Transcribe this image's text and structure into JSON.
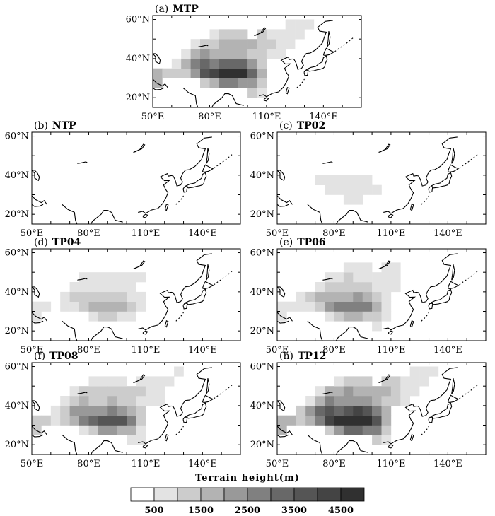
{
  "colorbar": {
    "title": "Terrain height(m)",
    "tick_labels": [
      "500",
      "1500",
      "2500",
      "3500",
      "4500"
    ],
    "levels": [
      0,
      500,
      1000,
      1500,
      2000,
      2500,
      3000,
      3500,
      4000,
      4500,
      5000
    ],
    "colors": [
      "#ffffff",
      "#e3e3e3",
      "#cccccc",
      "#b3b3b3",
      "#999999",
      "#808080",
      "#686868",
      "#555555",
      "#444444",
      "#303030"
    ]
  },
  "map_extent": {
    "lon": [
      50,
      160
    ],
    "lat": [
      15,
      62
    ]
  },
  "x_tick_labels": [
    "50°E",
    "80°E",
    "110°E",
    "140°E"
  ],
  "y_tick_labels": [
    "60°N",
    "40°N",
    "20°N"
  ],
  "panels": [
    {
      "label": "(a)",
      "name": "MTP",
      "scale": 1.0
    },
    {
      "label": "(b)",
      "name": "NTP",
      "scale": 0.0
    },
    {
      "label": "(c)",
      "name": "TP02",
      "scale": 0.2
    },
    {
      "label": "(d)",
      "name": "TP04",
      "scale": 0.4
    },
    {
      "label": "(e)",
      "name": "TP06",
      "scale": 0.6
    },
    {
      "label": "(f)",
      "name": "TP08",
      "scale": 0.8
    },
    {
      "label": "(h)",
      "name": "TP12",
      "scale": 1.2
    }
  ],
  "grid_resolution_deg": 5,
  "terrain_cells_m": [
    {
      "lon": 52.5,
      "lat": 27.5,
      "h": 1500
    },
    {
      "lon": 52.5,
      "lat": 32.5,
      "h": 1600
    },
    {
      "lon": 57.5,
      "lat": 32.5,
      "h": 1300
    },
    {
      "lon": 62.5,
      "lat": 32.5,
      "h": 1200
    },
    {
      "lon": 62.5,
      "lat": 37.5,
      "h": 900
    },
    {
      "lon": 67.5,
      "lat": 32.5,
      "h": 1400
    },
    {
      "lon": 67.5,
      "lat": 37.5,
      "h": 1700
    },
    {
      "lon": 67.5,
      "lat": 42.5,
      "h": 800
    },
    {
      "lon": 72.5,
      "lat": 32.5,
      "h": 2200
    },
    {
      "lon": 72.5,
      "lat": 37.5,
      "h": 2600
    },
    {
      "lon": 72.5,
      "lat": 42.5,
      "h": 1500
    },
    {
      "lon": 72.5,
      "lat": 47.5,
      "h": 700
    },
    {
      "lon": 77.5,
      "lat": 27.5,
      "h": 1200
    },
    {
      "lon": 77.5,
      "lat": 32.5,
      "h": 3500
    },
    {
      "lon": 77.5,
      "lat": 37.5,
      "h": 3000
    },
    {
      "lon": 77.5,
      "lat": 42.5,
      "h": 2200
    },
    {
      "lon": 77.5,
      "lat": 47.5,
      "h": 1300
    },
    {
      "lon": 82.5,
      "lat": 27.5,
      "h": 1800
    },
    {
      "lon": 82.5,
      "lat": 32.5,
      "h": 4300
    },
    {
      "lon": 82.5,
      "lat": 37.5,
      "h": 2700
    },
    {
      "lon": 82.5,
      "lat": 42.5,
      "h": 1700
    },
    {
      "lon": 82.5,
      "lat": 47.5,
      "h": 1400
    },
    {
      "lon": 82.5,
      "lat": 52.5,
      "h": 700
    },
    {
      "lon": 87.5,
      "lat": 27.5,
      "h": 2800
    },
    {
      "lon": 87.5,
      "lat": 32.5,
      "h": 4800
    },
    {
      "lon": 87.5,
      "lat": 37.5,
      "h": 3000
    },
    {
      "lon": 87.5,
      "lat": 42.5,
      "h": 1800
    },
    {
      "lon": 87.5,
      "lat": 47.5,
      "h": 1700
    },
    {
      "lon": 87.5,
      "lat": 52.5,
      "h": 1000
    },
    {
      "lon": 92.5,
      "lat": 27.5,
      "h": 2700
    },
    {
      "lon": 92.5,
      "lat": 32.5,
      "h": 4700
    },
    {
      "lon": 92.5,
      "lat": 37.5,
      "h": 3400
    },
    {
      "lon": 92.5,
      "lat": 42.5,
      "h": 1900
    },
    {
      "lon": 92.5,
      "lat": 47.5,
      "h": 1600
    },
    {
      "lon": 92.5,
      "lat": 52.5,
      "h": 1100
    },
    {
      "lon": 97.5,
      "lat": 27.5,
      "h": 2200
    },
    {
      "lon": 97.5,
      "lat": 32.5,
      "h": 4500
    },
    {
      "lon": 97.5,
      "lat": 37.5,
      "h": 3100
    },
    {
      "lon": 97.5,
      "lat": 42.5,
      "h": 1800
    },
    {
      "lon": 97.5,
      "lat": 47.5,
      "h": 1600
    },
    {
      "lon": 97.5,
      "lat": 52.5,
      "h": 1000
    },
    {
      "lon": 102.5,
      "lat": 22.5,
      "h": 1000
    },
    {
      "lon": 102.5,
      "lat": 27.5,
      "h": 2200
    },
    {
      "lon": 102.5,
      "lat": 32.5,
      "h": 3300
    },
    {
      "lon": 102.5,
      "lat": 37.5,
      "h": 2400
    },
    {
      "lon": 102.5,
      "lat": 42.5,
      "h": 1400
    },
    {
      "lon": 102.5,
      "lat": 47.5,
      "h": 1500
    },
    {
      "lon": 107.5,
      "lat": 22.5,
      "h": 800
    },
    {
      "lon": 107.5,
      "lat": 27.5,
      "h": 1100
    },
    {
      "lon": 107.5,
      "lat": 32.5,
      "h": 1500
    },
    {
      "lon": 107.5,
      "lat": 37.5,
      "h": 1300
    },
    {
      "lon": 107.5,
      "lat": 42.5,
      "h": 1000
    },
    {
      "lon": 107.5,
      "lat": 47.5,
      "h": 1300
    },
    {
      "lon": 107.5,
      "lat": 52.5,
      "h": 1000
    },
    {
      "lon": 112.5,
      "lat": 42.5,
      "h": 900
    },
    {
      "lon": 112.5,
      "lat": 47.5,
      "h": 1000
    },
    {
      "lon": 112.5,
      "lat": 52.5,
      "h": 900
    },
    {
      "lon": 117.5,
      "lat": 42.5,
      "h": 700
    },
    {
      "lon": 117.5,
      "lat": 47.5,
      "h": 700
    },
    {
      "lon": 117.5,
      "lat": 52.5,
      "h": 800
    },
    {
      "lon": 122.5,
      "lat": 47.5,
      "h": 600
    },
    {
      "lon": 122.5,
      "lat": 52.5,
      "h": 700
    },
    {
      "lon": 122.5,
      "lat": 57.5,
      "h": 600
    },
    {
      "lon": 127.5,
      "lat": 52.5,
      "h": 600
    },
    {
      "lon": 127.5,
      "lat": 57.5,
      "h": 700
    },
    {
      "lon": 132.5,
      "lat": 57.5,
      "h": 600
    }
  ]
}
